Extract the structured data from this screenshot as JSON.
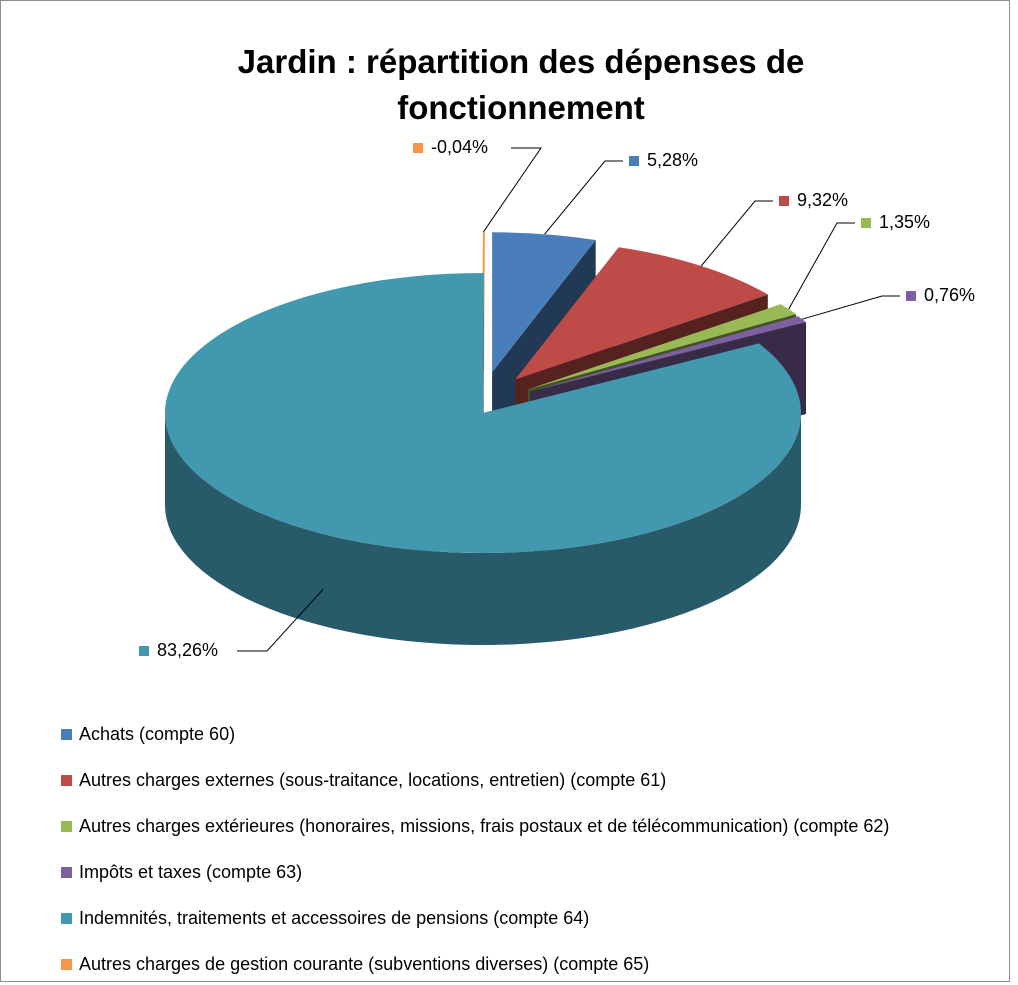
{
  "chart_data": {
    "type": "pie3d",
    "title": "Jardin : répartition des dépenses de fonctionnement",
    "categories": [
      "Achats (compte 60)",
      "Autres charges externes (sous-traitance, locations, entretien) (compte 61)",
      "Autres charges extérieures (honoraires, missions, frais postaux et de télécommunication) (compte 62)",
      "Impôts et taxes (compte 63)",
      "Indemnités, traitements et accessoires de pensions (compte 64)",
      "Autres charges de gestion courante (subventions diverses) (compte 65)"
    ],
    "values": [
      5.28,
      9.32,
      1.35,
      0.76,
      83.26,
      -0.04
    ],
    "value_labels": [
      "5,28%",
      "9,32%",
      "1,35%",
      "0,76%",
      "83,26%",
      "-0,04%"
    ],
    "colors": [
      "#4a7ebb",
      "#be4b48",
      "#98b954",
      "#7d60a0",
      "#4198af",
      "#f79646"
    ],
    "legend": "bottom"
  }
}
